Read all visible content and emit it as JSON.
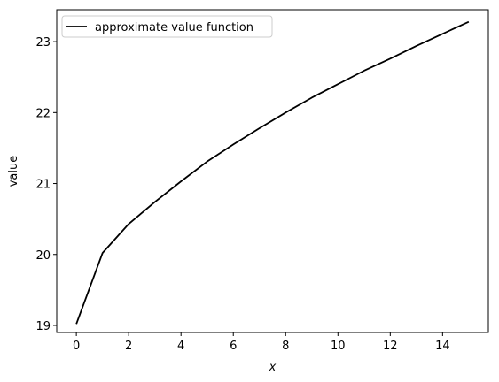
{
  "chart_data": {
    "type": "line",
    "title": "",
    "xlabel": "x",
    "ylabel": "value",
    "xlim": [
      -0.75,
      15.75
    ],
    "ylim": [
      18.9,
      23.45
    ],
    "xticks": [
      0,
      2,
      4,
      6,
      8,
      10,
      12,
      14
    ],
    "xtick_labels": [
      "0",
      "2",
      "4",
      "6",
      "8",
      "10",
      "12",
      "14"
    ],
    "yticks": [
      19,
      20,
      21,
      22,
      23
    ],
    "ytick_labels": [
      "19",
      "20",
      "21",
      "22",
      "23"
    ],
    "grid": false,
    "legend": {
      "position": "top-left"
    },
    "series": [
      {
        "name": "approximate value function",
        "color": "#000000",
        "x": [
          0,
          1,
          2,
          3,
          4,
          5,
          6,
          7,
          8,
          9,
          10,
          11,
          12,
          13,
          14,
          15
        ],
        "y": [
          19.02,
          20.02,
          20.43,
          20.74,
          21.03,
          21.31,
          21.55,
          21.78,
          22.0,
          22.21,
          22.4,
          22.59,
          22.76,
          22.94,
          23.11,
          23.28
        ]
      }
    ]
  }
}
